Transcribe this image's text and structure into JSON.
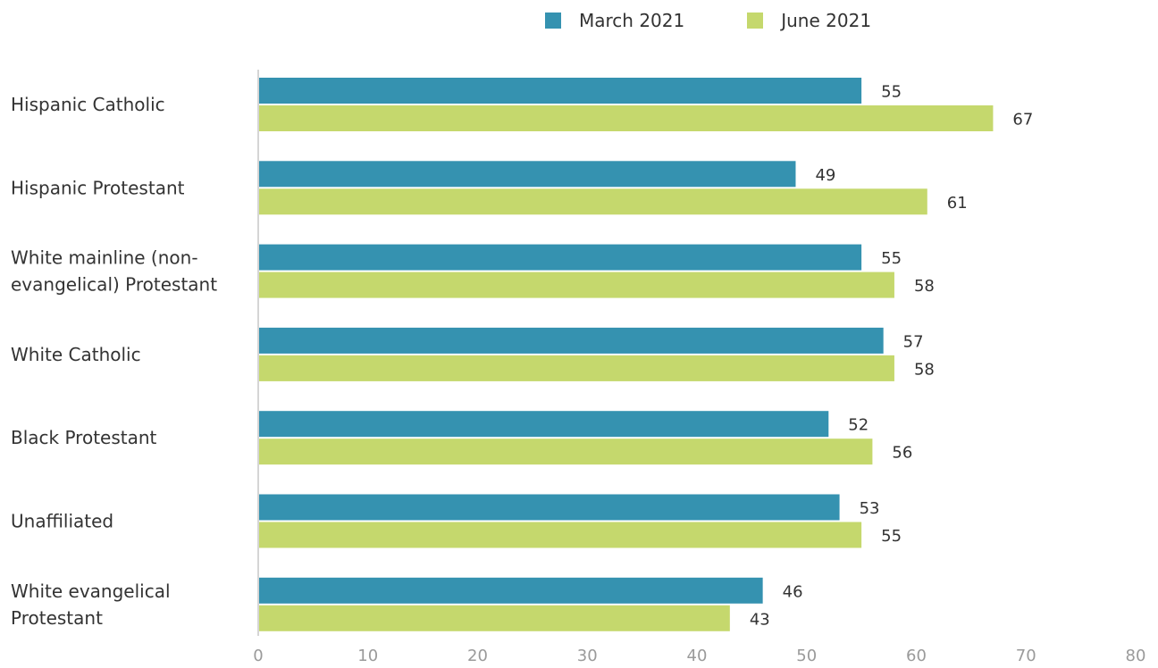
{
  "chart_data": {
    "type": "bar",
    "orientation": "horizontal",
    "categories": [
      [
        "Hispanic Catholic"
      ],
      [
        "Hispanic Protestant"
      ],
      [
        "White mainline (non-",
        "evangelical) Protestant"
      ],
      [
        "White Catholic"
      ],
      [
        "Black Protestant"
      ],
      [
        "Unaffiliated"
      ],
      [
        "White evangelical",
        "Protestant"
      ]
    ],
    "series": [
      {
        "name": "March 2021",
        "color": "#3592b0",
        "values": [
          55,
          49,
          55,
          57,
          52,
          53,
          46
        ]
      },
      {
        "name": "June 2021",
        "color": "#c5d86d",
        "values": [
          67,
          61,
          58,
          58,
          56,
          55,
          43
        ]
      }
    ],
    "xlim": [
      0,
      80
    ],
    "xticks": [
      "0",
      "10",
      "20",
      "30",
      "40",
      "50",
      "60",
      "70",
      "80"
    ],
    "legend_position": "top",
    "grid": false,
    "title": "",
    "xlabel": "",
    "ylabel": ""
  }
}
